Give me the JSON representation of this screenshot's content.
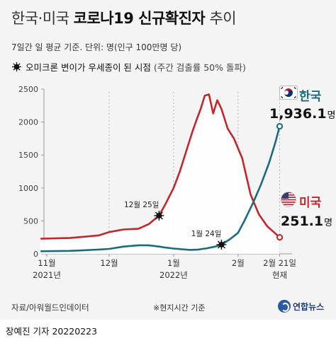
{
  "title_light_1": "한국·미국",
  "title_bold": "코로나19 신규확진자",
  "title_light_2": "추이",
  "subtitle": "7일간 일 평균 기준. 단위: 명(인구 100만명 당)",
  "omicron_legend": "오미크론 변이가 우세종이 된 시점",
  "omicron_legend_note": "(주간 검출률 50% 돌파)",
  "korea_label": "한국",
  "korea_value": "1,936.1",
  "us_label": "미국",
  "us_value": "251.1",
  "value_unit": "명",
  "annot_us": "12월 25일",
  "annot_kr": "1월 24일",
  "source": "자료/아워월드인데이터",
  "note": "※현지시간 기준",
  "brand": "연합뉴스",
  "byline": "장예진 기자  20220223",
  "colors": {
    "korea": "#1a6b7d",
    "us": "#c0272d",
    "background": "#f4f4f4"
  },
  "chart_data": {
    "type": "line",
    "ylim": [
      0,
      2500
    ],
    "y_ticks": [
      "0",
      "500",
      "1000",
      "1500",
      "2000",
      "2500"
    ],
    "x_labels": [
      {
        "text": "11월",
        "sub": "2021년"
      },
      {
        "text": "12월",
        "sub": ""
      },
      {
        "text": "1월",
        "sub": "2022년"
      },
      {
        "text": "2월",
        "sub": ""
      },
      {
        "text": "2월 21일",
        "sub": "현재"
      }
    ],
    "x_dates": [
      "2021-11-01",
      "2021-12-01",
      "2022-01-01",
      "2022-02-01",
      "2022-02-21"
    ],
    "omicron_dates": {
      "us": "2021-12-25",
      "korea": "2022-01-24"
    },
    "grid": "dashed vertical at month starts",
    "series": [
      {
        "name": "미국",
        "color": "#c0272d",
        "x": [
          "2021-10-29",
          "2021-11-05",
          "2021-11-12",
          "2021-11-19",
          "2021-11-26",
          "2021-12-01",
          "2021-12-08",
          "2021-12-15",
          "2021-12-20",
          "2021-12-25",
          "2021-12-28",
          "2022-01-01",
          "2022-01-04",
          "2022-01-07",
          "2022-01-10",
          "2022-01-12",
          "2022-01-14",
          "2022-01-16",
          "2022-01-18",
          "2022-01-20",
          "2022-01-22",
          "2022-01-24",
          "2022-01-27",
          "2022-01-30",
          "2022-02-03",
          "2022-02-07",
          "2022-02-11",
          "2022-02-15",
          "2022-02-21"
        ],
        "values": [
          230,
          235,
          240,
          260,
          280,
          330,
          370,
          380,
          450,
          580,
          750,
          1000,
          1250,
          1550,
          1850,
          2030,
          2200,
          2400,
          2420,
          2130,
          2330,
          2200,
          1900,
          1750,
          1450,
          900,
          600,
          420,
          251.1
        ]
      },
      {
        "name": "한국",
        "color": "#1a6b7d",
        "x": [
          "2021-10-29",
          "2021-11-05",
          "2021-11-12",
          "2021-11-19",
          "2021-11-26",
          "2021-12-01",
          "2021-12-08",
          "2021-12-15",
          "2021-12-20",
          "2021-12-25",
          "2021-12-28",
          "2022-01-01",
          "2022-01-05",
          "2022-01-09",
          "2022-01-13",
          "2022-01-17",
          "2022-01-21",
          "2022-01-24",
          "2022-01-28",
          "2022-02-01",
          "2022-02-04",
          "2022-02-08",
          "2022-02-12",
          "2022-02-16",
          "2022-02-19",
          "2022-02-21"
        ],
        "values": [
          40,
          42,
          45,
          55,
          65,
          75,
          110,
          130,
          130,
          110,
          95,
          80,
          70,
          60,
          65,
          85,
          110,
          140,
          220,
          320,
          500,
          760,
          1050,
          1390,
          1700,
          1936.1
        ]
      }
    ]
  }
}
